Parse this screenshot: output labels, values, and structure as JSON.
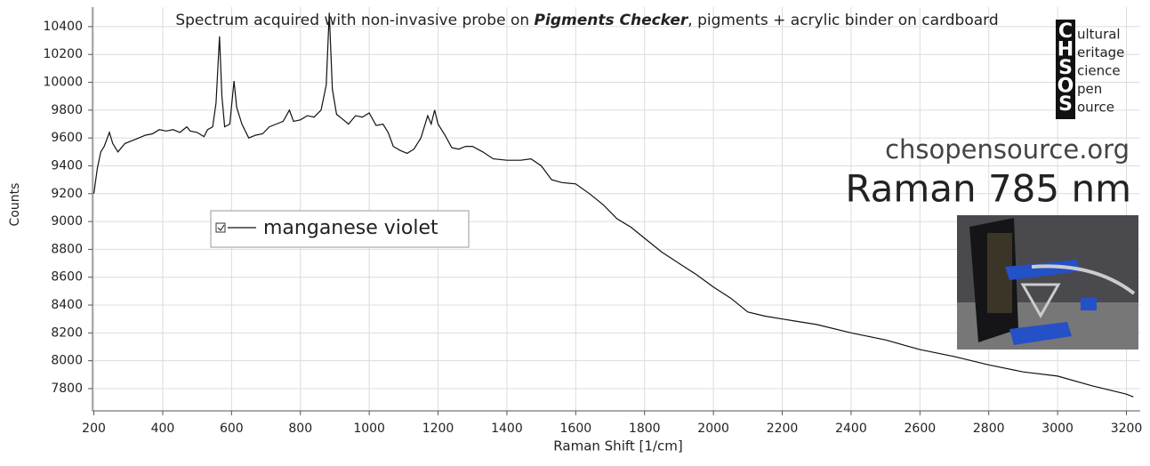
{
  "chart_data": {
    "type": "line",
    "title": {
      "before": "Spectrum acquired with non-invasive probe on ",
      "bold": "Pigments Checker",
      "after": ", pigments + acrylic binder on cardboard"
    },
    "x_label": "Raman Shift [1/cm]",
    "y_label": "Counts",
    "xlim": [
      196,
      3240
    ],
    "ylim": [
      7640,
      10540
    ],
    "xticks": [
      200,
      400,
      600,
      800,
      1000,
      1200,
      1400,
      1600,
      1800,
      2000,
      2200,
      2400,
      2600,
      2800,
      3000,
      3200
    ],
    "yticks": [
      7800,
      8000,
      8200,
      8400,
      8600,
      8800,
      9000,
      9200,
      9400,
      9600,
      9800,
      10000,
      10200,
      10400
    ],
    "grid": true,
    "legend": "upper left",
    "x": [
      200,
      210,
      220,
      230,
      245,
      255,
      270,
      290,
      310,
      330,
      350,
      370,
      390,
      410,
      430,
      450,
      470,
      480,
      500,
      520,
      530,
      545,
      555,
      565,
      572,
      580,
      595,
      607,
      615,
      630,
      650,
      670,
      690,
      710,
      730,
      750,
      768,
      780,
      800,
      820,
      840,
      860,
      875,
      884,
      893,
      905,
      920,
      940,
      960,
      980,
      1000,
      1020,
      1040,
      1055,
      1070,
      1090,
      1110,
      1130,
      1150,
      1170,
      1180,
      1190,
      1200,
      1220,
      1240,
      1260,
      1280,
      1300,
      1330,
      1360,
      1400,
      1440,
      1470,
      1500,
      1530,
      1560,
      1600,
      1640,
      1680,
      1720,
      1760,
      1800,
      1850,
      1900,
      1950,
      2000,
      2050,
      2100,
      2150,
      2200,
      2300,
      2400,
      2500,
      2600,
      2700,
      2800,
      2900,
      3000,
      3100,
      3200,
      3220
    ],
    "series": [
      {
        "name": "manganese violet",
        "color": "#111111",
        "values": [
          9200,
          9380,
          9500,
          9540,
          9640,
          9560,
          9500,
          9560,
          9580,
          9600,
          9620,
          9630,
          9660,
          9650,
          9660,
          9640,
          9680,
          9650,
          9640,
          9610,
          9660,
          9680,
          9850,
          10330,
          9900,
          9680,
          9700,
          10010,
          9820,
          9700,
          9600,
          9620,
          9630,
          9680,
          9700,
          9720,
          9800,
          9720,
          9730,
          9760,
          9750,
          9800,
          9980,
          10500,
          9950,
          9770,
          9740,
          9700,
          9760,
          9750,
          9780,
          9690,
          9700,
          9640,
          9540,
          9510,
          9490,
          9520,
          9600,
          9760,
          9700,
          9800,
          9700,
          9620,
          9530,
          9520,
          9540,
          9540,
          9500,
          9450,
          9440,
          9440,
          9450,
          9400,
          9300,
          9280,
          9270,
          9200,
          9120,
          9020,
          8960,
          8880,
          8780,
          8700,
          8620,
          8530,
          8450,
          8350,
          8320,
          8300,
          8260,
          8200,
          8150,
          8080,
          8030,
          7970,
          7920,
          7890,
          7820,
          7760,
          7740
        ]
      }
    ]
  },
  "branding": {
    "letters": [
      "C",
      "H",
      "S",
      "O",
      "S"
    ],
    "words": [
      "ultural",
      "eritage",
      "cience",
      "pen",
      "ource"
    ],
    "website": "chsopensource.org",
    "technique": "Raman 785 nm"
  }
}
